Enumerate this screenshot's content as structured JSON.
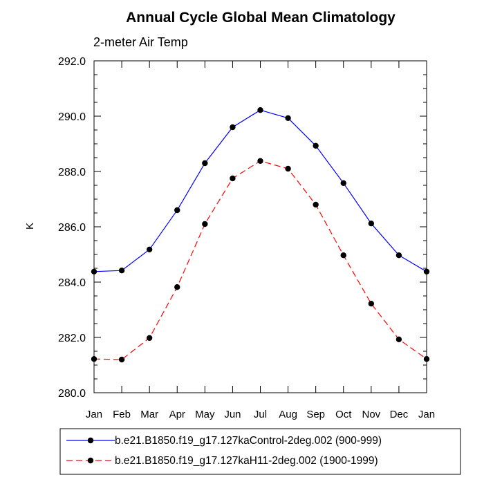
{
  "chart_data": {
    "type": "line",
    "title": "Annual Cycle Global Mean Climatology",
    "subtitle": "2-meter Air Temp",
    "xlabel": "",
    "ylabel": "K",
    "categories": [
      "Jan",
      "Feb",
      "Mar",
      "Apr",
      "May",
      "Jun",
      "Jul",
      "Aug",
      "Sep",
      "Oct",
      "Nov",
      "Dec",
      "Jan"
    ],
    "ylim": [
      280.0,
      292.0
    ],
    "yticks": [
      "280.0",
      "282.0",
      "284.0",
      "286.0",
      "288.0",
      "290.0",
      "292.0"
    ],
    "grid": false,
    "legend_position": "bottom",
    "series": [
      {
        "name": "b.e21.B1850.f19_g17.127kaControl-2deg.002 (900-999)",
        "color": "#0000ff",
        "dash": "solid",
        "marker": "circle",
        "values": [
          284.38,
          284.42,
          285.18,
          286.6,
          288.3,
          289.6,
          290.22,
          289.93,
          288.93,
          287.58,
          286.12,
          284.97,
          284.38
        ]
      },
      {
        "name": "b.e21.B1850.f19_g17.127kaH11-2deg.002 (1900-1999)",
        "color": "#ff0000",
        "dash": "dashed",
        "marker": "circle",
        "values": [
          281.22,
          281.2,
          281.98,
          283.82,
          286.1,
          287.75,
          288.38,
          288.1,
          286.8,
          284.97,
          283.22,
          281.93,
          281.22
        ]
      }
    ]
  }
}
